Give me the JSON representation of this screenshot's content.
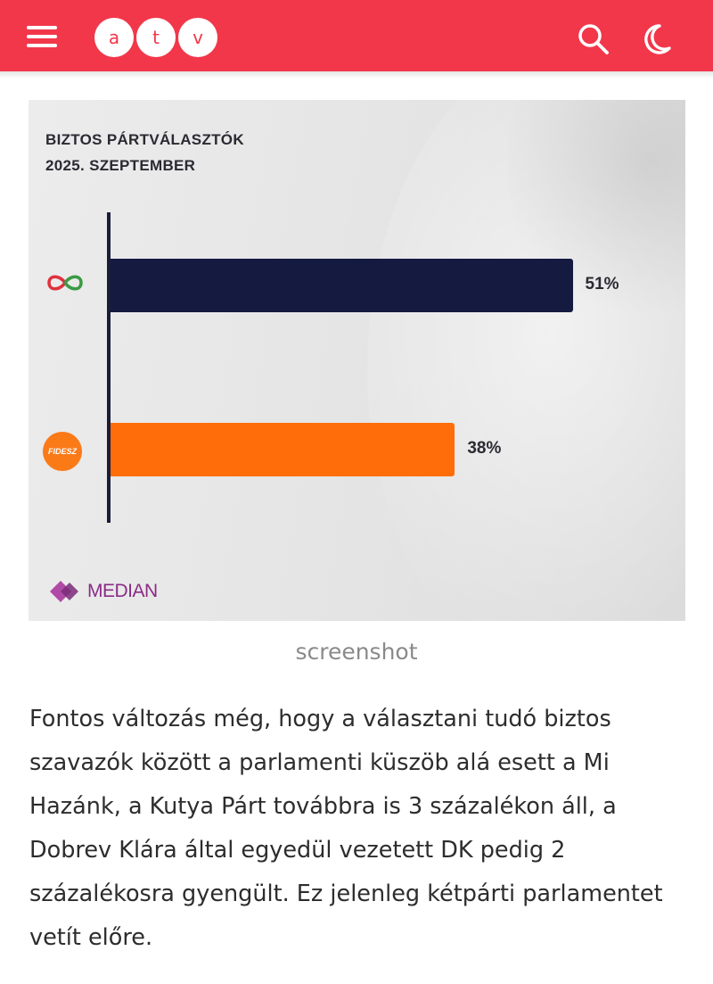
{
  "header": {
    "logo_letters": [
      "a",
      "t",
      "v"
    ],
    "bar_color": "#f2374a",
    "icons": [
      "menu-icon",
      "search-icon",
      "moon-icon"
    ]
  },
  "chart_data": {
    "type": "bar",
    "orientation": "horizontal",
    "title": "BIZTOS PÁRTVÁLASZTÓK",
    "subtitle": "2025. SZEPTEMBER",
    "categories": [
      "",
      ""
    ],
    "category_icons": [
      "tisza-logo",
      "fidesz-logo"
    ],
    "values": [
      51,
      38
    ],
    "value_labels": [
      "51%",
      "38%"
    ],
    "colors": [
      "#141a40",
      "#ff6d0a"
    ],
    "xlim": [
      0,
      60
    ],
    "grid": false,
    "fidesz_logo_text": "FIDESZ",
    "source_logo": "MEDIAN"
  },
  "caption": "screenshot",
  "article": {
    "paragraph": "Fontos változás még, hogy a választani tudó biztos szavazók között a parlamenti küszöb alá esett a Mi Hazánk, a Kutya Párt továbbra is 3 százalékon áll, a Dobrev Klára által egyedül vezetett DK pedig 2 százalékosra gyengült. Ez jelenleg kétpárti parlamentet vetít előre."
  }
}
